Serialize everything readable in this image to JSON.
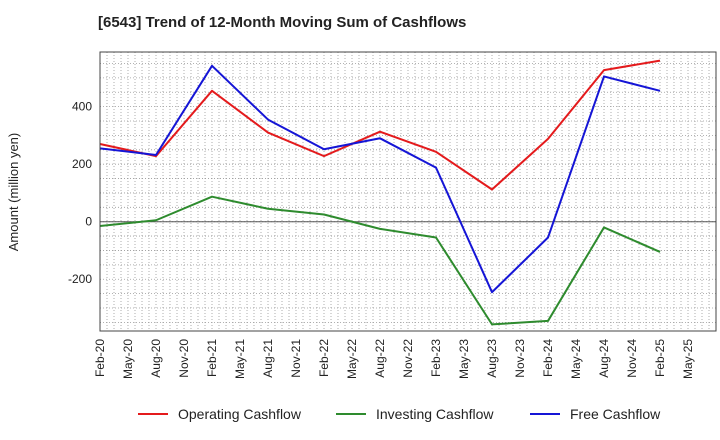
{
  "chart_data": {
    "type": "line",
    "title": "[6543]  Trend of 12-Month Moving Sum of Cashflows",
    "ylabel": "Amount (million yen)",
    "xlabel": "",
    "categories": [
      "Feb-20",
      "May-20",
      "Aug-20",
      "Nov-20",
      "Feb-21",
      "May-21",
      "Aug-21",
      "Nov-21",
      "Feb-22",
      "May-22",
      "Aug-22",
      "Nov-22",
      "Feb-23",
      "May-23",
      "Aug-23",
      "Nov-23",
      "Feb-24",
      "May-24",
      "Aug-24",
      "Nov-24",
      "Feb-25",
      "May-25"
    ],
    "ylim": [
      -380,
      590
    ],
    "yticks": [
      -200,
      0,
      200,
      400
    ],
    "grid": true,
    "legend_position": "bottom",
    "series": [
      {
        "name": "Operating Cashflow",
        "color": "#e41a1c",
        "points": [
          [
            "Feb-20",
            270
          ],
          [
            "Aug-20",
            228
          ],
          [
            "Feb-21",
            455
          ],
          [
            "Aug-21",
            310
          ],
          [
            "Feb-22",
            228
          ],
          [
            "Aug-22",
            313
          ],
          [
            "Feb-23",
            243
          ],
          [
            "Aug-23",
            112
          ],
          [
            "Feb-24",
            288
          ],
          [
            "Aug-24",
            527
          ],
          [
            "Feb-25",
            560
          ]
        ]
      },
      {
        "name": "Investing Cashflow",
        "color": "#2e8b2e",
        "points": [
          [
            "Feb-20",
            -15
          ],
          [
            "Aug-20",
            5
          ],
          [
            "Feb-21",
            87
          ],
          [
            "Aug-21",
            45
          ],
          [
            "Feb-22",
            25
          ],
          [
            "Aug-22",
            -25
          ],
          [
            "Feb-23",
            -55
          ],
          [
            "Aug-23",
            -357
          ],
          [
            "Feb-24",
            -345
          ],
          [
            "Aug-24",
            -20
          ],
          [
            "Feb-25",
            -105
          ]
        ]
      },
      {
        "name": "Free Cashflow",
        "color": "#1515d6",
        "points": [
          [
            "Feb-20",
            255
          ],
          [
            "Aug-20",
            232
          ],
          [
            "Feb-21",
            542
          ],
          [
            "Aug-21",
            355
          ],
          [
            "Feb-22",
            252
          ],
          [
            "Aug-22",
            290
          ],
          [
            "Feb-23",
            188
          ],
          [
            "Aug-23",
            -245
          ],
          [
            "Feb-24",
            -55
          ],
          [
            "Aug-24",
            505
          ],
          [
            "Feb-25",
            455
          ]
        ]
      }
    ]
  }
}
